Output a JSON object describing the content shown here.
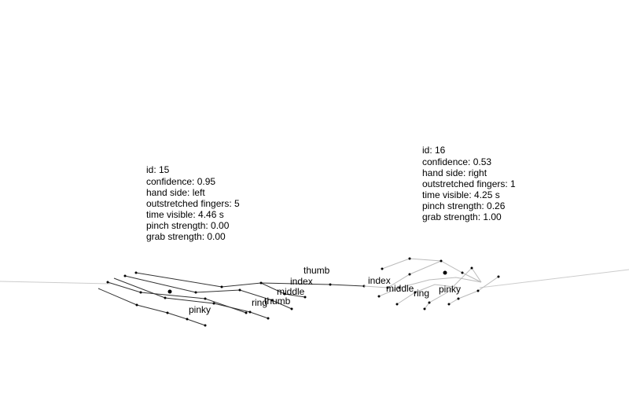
{
  "hands": [
    {
      "key": "left",
      "info_lines": [
        "id: 15",
        "confidence: 0.95",
        "hand side: left",
        "outstretched fingers: 5",
        "time visible: 4.46 s",
        "pinch strength: 0.00",
        "grab strength: 0.00"
      ],
      "finger_labels": [
        "thumb",
        "index",
        "middle",
        "ring",
        "thumb",
        "pinky"
      ],
      "colors": {
        "bones": "#333333",
        "joints": "#000000",
        "palm": "#000000"
      }
    },
    {
      "key": "right",
      "info_lines": [
        "id: 16",
        "confidence: 0.53",
        "hand side: right",
        "outstretched fingers: 1",
        "time visible: 4.25 s",
        "pinch strength: 0.26",
        "grab strength: 1.00"
      ],
      "finger_labels": [
        "index",
        "middle",
        "ring",
        "pinky"
      ],
      "colors": {
        "bones": "#bbbbbb",
        "joints": "#000000",
        "palm": "#000000"
      }
    }
  ],
  "colors": {
    "background": "#ffffff",
    "horizon": "#cccccc",
    "text": "#000000"
  }
}
